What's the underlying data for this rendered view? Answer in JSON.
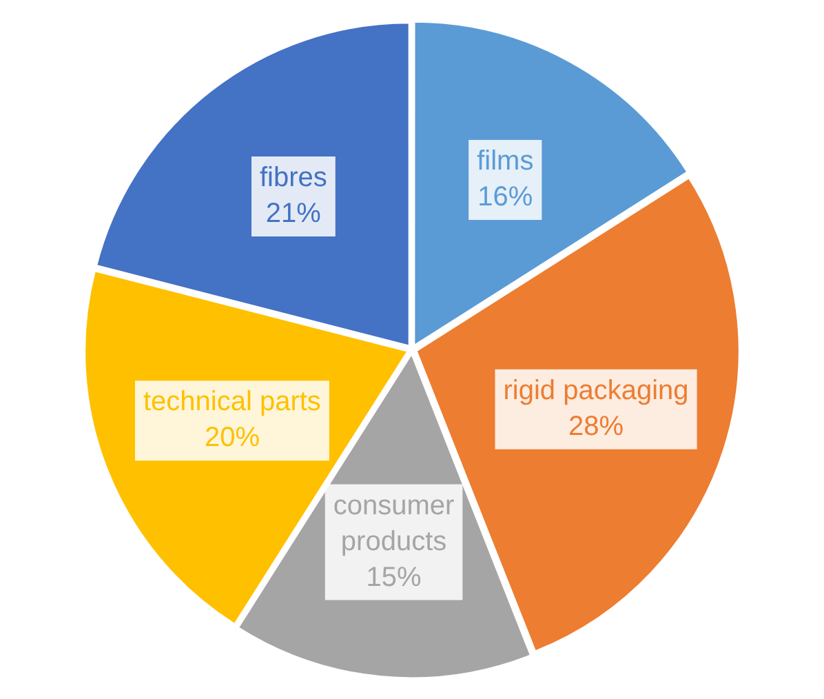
{
  "chart_data": {
    "type": "pie",
    "categories": [
      "films",
      "rigid packaging",
      "consumer products",
      "technical parts",
      "fibres"
    ],
    "values": [
      16,
      28,
      15,
      20,
      21
    ],
    "colors": [
      "#5b9bd5",
      "#ed7d31",
      "#a5a5a5",
      "#ffc000",
      "#4472c4"
    ],
    "value_labels": [
      "16%",
      "28%",
      "15%",
      "20%",
      "21%"
    ],
    "legend": false
  }
}
